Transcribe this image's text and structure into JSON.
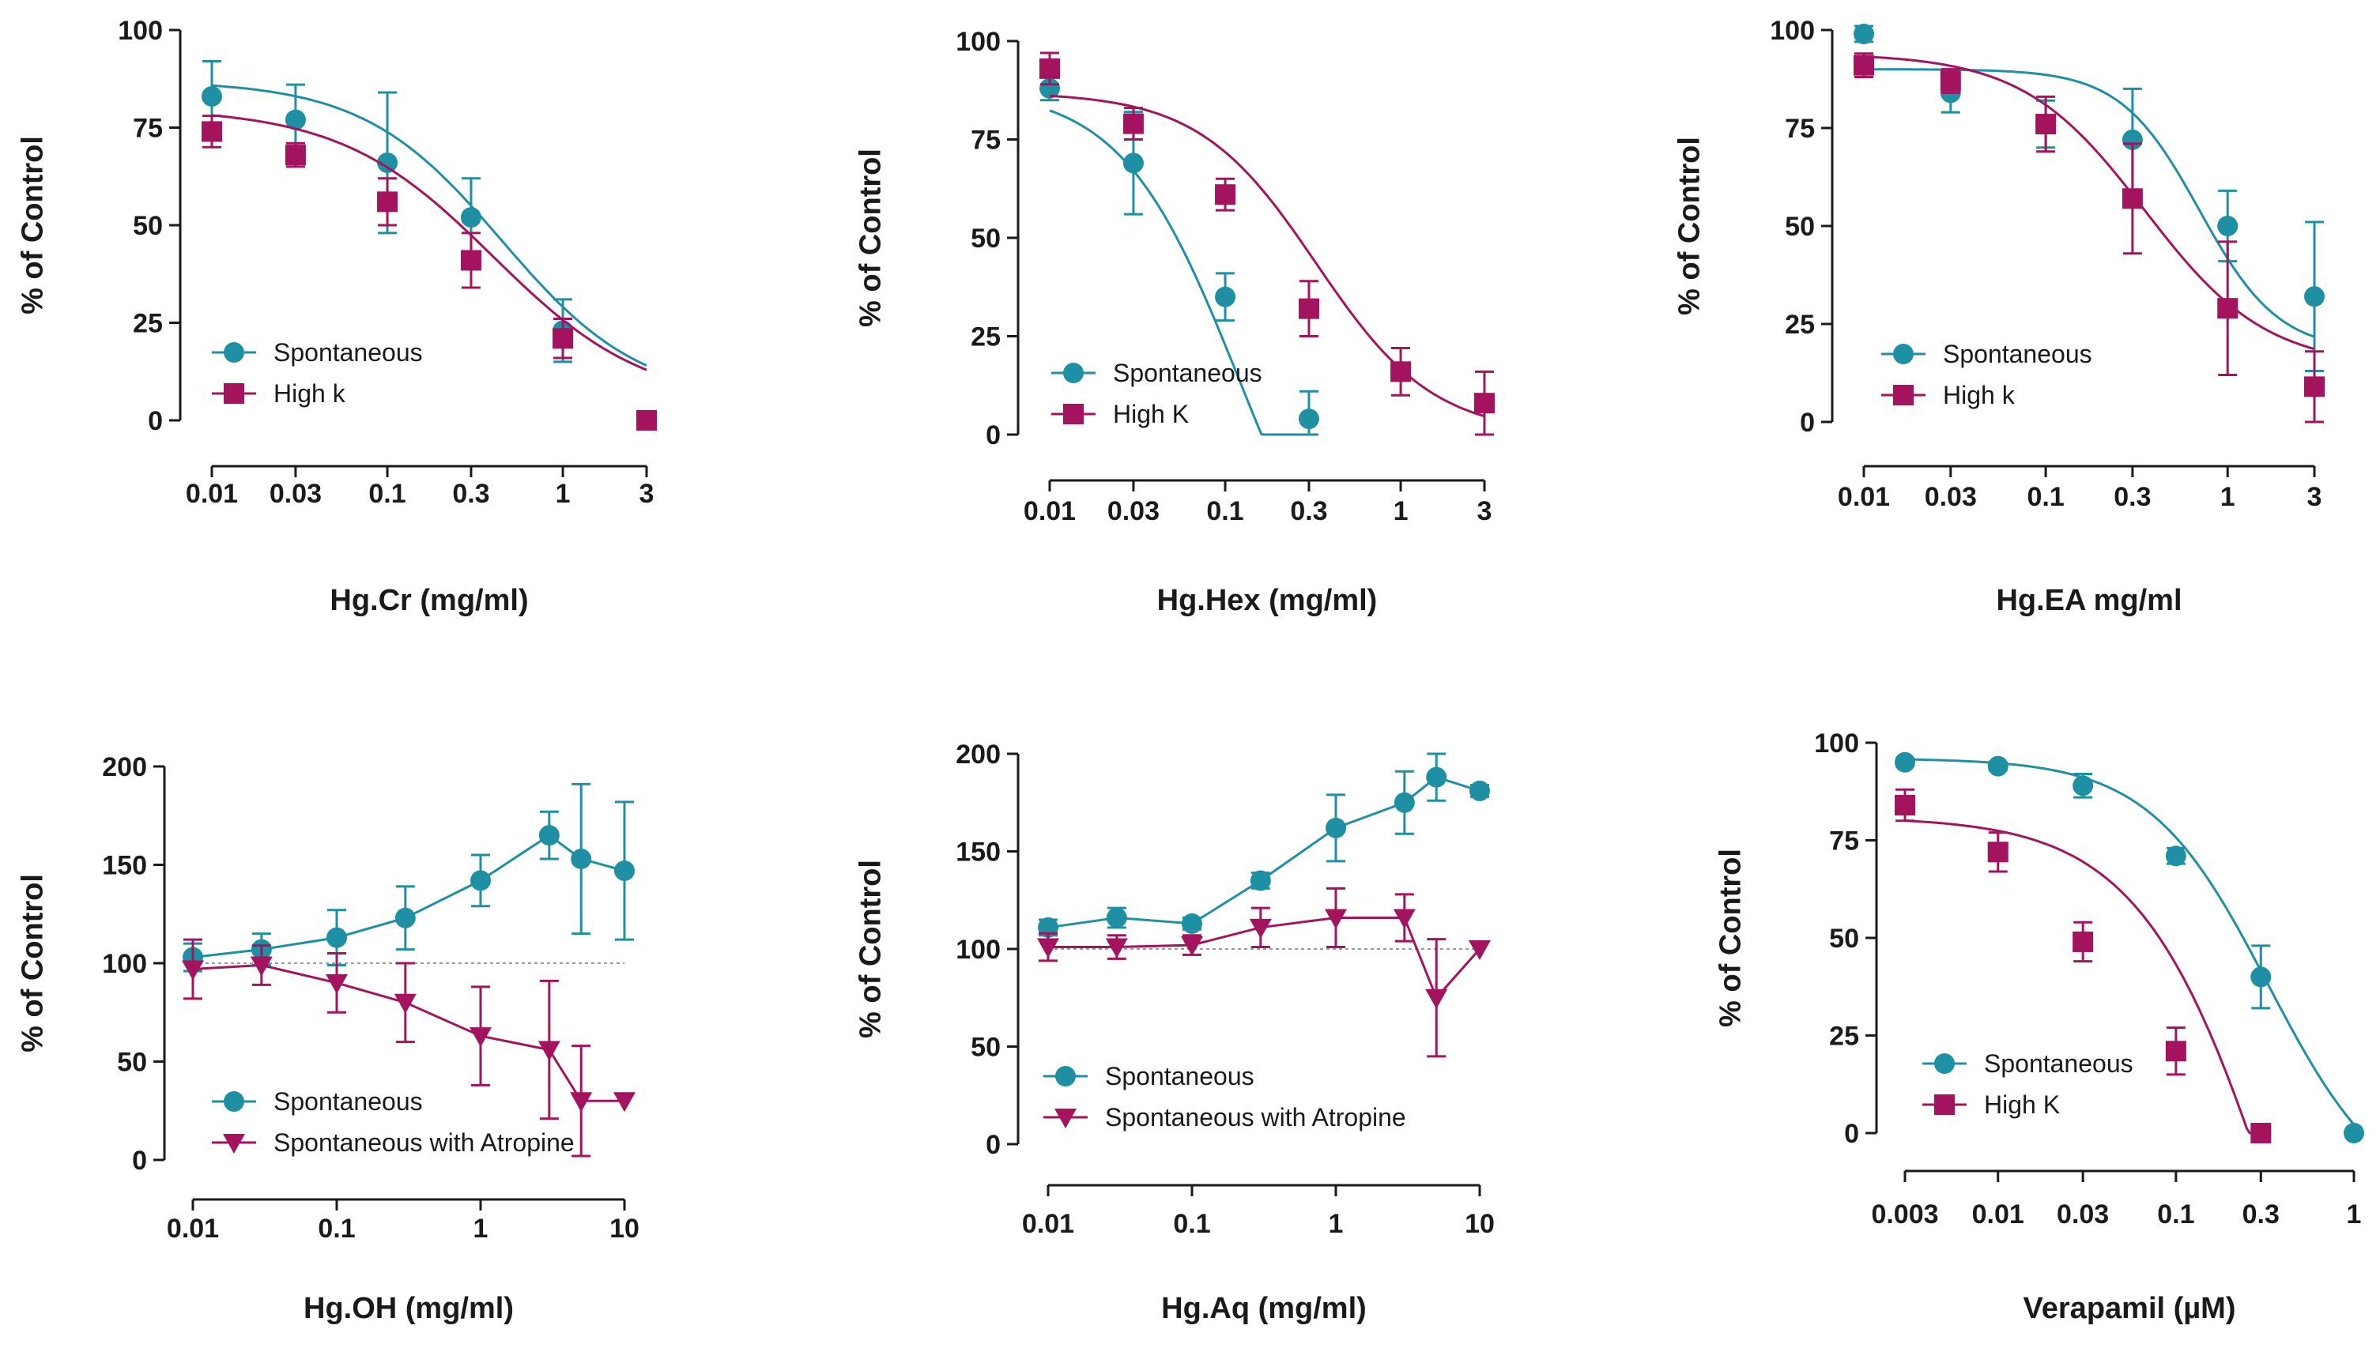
{
  "colors": {
    "teal": "#1F8FA3",
    "magenta": "#A3135E",
    "axis": "#1a1a1a",
    "ref": "#9a9a9a"
  },
  "chart_data": [
    {
      "type": "scatter",
      "title": "",
      "xlabel": "Hg.Cr (mg/ml)",
      "ylabel": "% of Control",
      "xscale": "log",
      "xlim": [
        0.01,
        3
      ],
      "ylim": [
        0,
        100
      ],
      "xticks": [
        0.01,
        0.03,
        0.1,
        0.3,
        1,
        3
      ],
      "xtick_labels": [
        "0.01",
        "0.03",
        "0.1",
        "0.3",
        "1",
        "3"
      ],
      "yticks": [
        0,
        25,
        50,
        75,
        100
      ],
      "ytick_labels": [
        "0",
        "25",
        "50",
        "75",
        "100"
      ],
      "legend": {
        "position": "bottom-left"
      },
      "series": [
        {
          "name": "Spontaneous",
          "color": "teal",
          "marker": "circle",
          "x": [
            0.01,
            0.03,
            0.1,
            0.3,
            1,
            3
          ],
          "y": [
            83,
            77,
            66,
            52,
            23,
            0
          ],
          "err": [
            9,
            9,
            18,
            10,
            8,
            0
          ],
          "fit": {
            "kind": "sigmoid",
            "top": 87,
            "bottom": 5,
            "ec50": 0.45,
            "hill": 1.1
          }
        },
        {
          "name": "High k",
          "color": "magenta",
          "marker": "square",
          "x": [
            0.01,
            0.03,
            0.1,
            0.3,
            1,
            3
          ],
          "y": [
            74,
            68,
            56,
            41,
            21,
            0
          ],
          "err": [
            4,
            3,
            6,
            7,
            5,
            0
          ],
          "fit": {
            "kind": "sigmoid",
            "top": 80,
            "bottom": 4,
            "ec50": 0.4,
            "hill": 1.0
          }
        }
      ]
    },
    {
      "type": "scatter",
      "title": "",
      "xlabel": "Hg.Hex (mg/ml)",
      "ylabel": "% of Control",
      "xscale": "log",
      "xlim": [
        0.01,
        3
      ],
      "ylim": [
        0,
        100
      ],
      "xticks": [
        0.01,
        0.03,
        0.1,
        0.3,
        1,
        3
      ],
      "xtick_labels": [
        "0.01",
        "0.03",
        "0.1",
        "0.3",
        "1",
        "3"
      ],
      "yticks": [
        0,
        25,
        50,
        75,
        100
      ],
      "ytick_labels": [
        "0",
        "25",
        "50",
        "75",
        "100"
      ],
      "legend": {
        "position": "bottom-left"
      },
      "series": [
        {
          "name": "Spontaneous",
          "color": "teal",
          "marker": "circle",
          "x": [
            0.01,
            0.03,
            0.1,
            0.3
          ],
          "y": [
            88,
            69,
            35,
            4
          ],
          "err": [
            3,
            13,
            6,
            7
          ],
          "fit": {
            "kind": "sigmoid",
            "top": 88,
            "bottom": -60,
            "ec50": 0.12,
            "hill": 1.3,
            "xmax": 0.28
          }
        },
        {
          "name": "High K",
          "color": "magenta",
          "marker": "square",
          "x": [
            0.01,
            0.03,
            0.1,
            0.3,
            1,
            3
          ],
          "y": [
            93,
            79,
            61,
            32,
            16,
            8
          ],
          "err": [
            4,
            4,
            4,
            7,
            6,
            8
          ],
          "fit": {
            "kind": "sigmoid",
            "top": 87,
            "bottom": 0,
            "ec50": 0.33,
            "hill": 1.3
          }
        }
      ]
    },
    {
      "type": "scatter",
      "title": "",
      "xlabel": "Hg.EA mg/ml",
      "ylabel": "% of Control",
      "xscale": "log",
      "xlim": [
        0.01,
        3
      ],
      "ylim": [
        0,
        100
      ],
      "xticks": [
        0.01,
        0.03,
        0.1,
        0.3,
        1,
        3
      ],
      "xtick_labels": [
        "0.01",
        "0.03",
        "0.1",
        "0.3",
        "1",
        "3"
      ],
      "yticks": [
        0,
        25,
        50,
        75,
        100
      ],
      "ytick_labels": [
        "0",
        "25",
        "50",
        "75",
        "100"
      ],
      "legend": {
        "position": "bottom-left"
      },
      "series": [
        {
          "name": "Spontaneous",
          "color": "teal",
          "marker": "circle",
          "x": [
            0.01,
            0.03,
            0.1,
            0.3,
            1,
            3
          ],
          "y": [
            99,
            84,
            76,
            72,
            50,
            32
          ],
          "err": [
            2,
            5,
            6,
            13,
            9,
            19
          ],
          "fit": {
            "kind": "sigmoid",
            "top": 90,
            "bottom": 18,
            "ec50": 0.7,
            "hill": 2.0
          }
        },
        {
          "name": "High k",
          "color": "magenta",
          "marker": "square",
          "x": [
            0.01,
            0.03,
            0.1,
            0.3,
            1,
            3
          ],
          "y": [
            91,
            87,
            76,
            57,
            29,
            9
          ],
          "err": [
            3,
            3,
            7,
            14,
            17,
            9
          ],
          "fit": {
            "kind": "sigmoid",
            "top": 94,
            "bottom": 14,
            "ec50": 0.35,
            "hill": 1.3
          }
        }
      ]
    },
    {
      "type": "line",
      "title": "",
      "xlabel": "Hg.OH (mg/ml)",
      "ylabel": "% of Control",
      "xscale": "log",
      "xlim": [
        0.01,
        10
      ],
      "ylim": [
        0,
        200
      ],
      "xticks": [
        0.01,
        0.1,
        1,
        10
      ],
      "xtick_labels": [
        "0.01",
        "0.1",
        "1",
        "10"
      ],
      "yticks": [
        0,
        50,
        100,
        150,
        200
      ],
      "ytick_labels": [
        "0",
        "50",
        "100",
        "150",
        "200"
      ],
      "reference_line": 100,
      "legend": {
        "position": "bottom-left"
      },
      "series": [
        {
          "name": "Spontaneous",
          "color": "teal",
          "marker": "circle",
          "x": [
            0.01,
            0.03,
            0.1,
            0.3,
            1,
            3,
            5,
            10
          ],
          "y": [
            103,
            107,
            113,
            123,
            142,
            165,
            153,
            147
          ],
          "err": [
            7,
            8,
            14,
            16,
            13,
            12,
            38,
            35
          ]
        },
        {
          "name": "Spontaneous with Atropine",
          "color": "magenta",
          "marker": "triangle-down",
          "x": [
            0.01,
            0.03,
            0.1,
            0.3,
            1,
            3,
            5,
            10
          ],
          "y": [
            97,
            99,
            90,
            80,
            63,
            56,
            30,
            30
          ],
          "err": [
            15,
            10,
            15,
            20,
            25,
            35,
            28,
            0
          ]
        }
      ]
    },
    {
      "type": "line",
      "title": "",
      "xlabel": "Hg.Aq (mg/ml)",
      "ylabel": "% of Control",
      "xscale": "log",
      "xlim": [
        0.01,
        10
      ],
      "ylim": [
        0,
        200
      ],
      "xticks": [
        0.01,
        0.1,
        1,
        10
      ],
      "xtick_labels": [
        "0.01",
        "0.1",
        "1",
        "10"
      ],
      "yticks": [
        0,
        50,
        100,
        150,
        200
      ],
      "ytick_labels": [
        "0",
        "50",
        "100",
        "150",
        "200"
      ],
      "reference_line": 100,
      "legend": {
        "position": "bottom-left"
      },
      "series": [
        {
          "name": "Spontaneous",
          "color": "teal",
          "marker": "circle",
          "x": [
            0.01,
            0.03,
            0.1,
            0.3,
            1,
            3,
            5,
            10
          ],
          "y": [
            111,
            116,
            113,
            135,
            162,
            175,
            188,
            181
          ],
          "err": [
            4,
            5,
            3,
            4,
            17,
            16,
            12,
            3
          ]
        },
        {
          "name": "Spontaneous with Atropine",
          "color": "magenta",
          "marker": "triangle-down",
          "x": [
            0.01,
            0.03,
            0.1,
            0.3,
            1,
            3,
            5,
            10
          ],
          "y": [
            101,
            101,
            102,
            111,
            116,
            116,
            75,
            100
          ],
          "err": [
            7,
            6,
            5,
            10,
            15,
            12,
            30,
            0
          ]
        }
      ]
    },
    {
      "type": "scatter",
      "title": "",
      "xlabel": "Verapamil (µM)",
      "ylabel": "% of Control",
      "xscale": "log",
      "xlim": [
        0.003,
        1
      ],
      "ylim": [
        0,
        100
      ],
      "xticks": [
        0.003,
        0.01,
        0.03,
        0.1,
        0.3,
        1
      ],
      "xtick_labels": [
        "0.003",
        "0.01",
        "0.03",
        "0.1",
        "0.3",
        "1"
      ],
      "yticks": [
        0,
        25,
        50,
        75,
        100
      ],
      "ytick_labels": [
        "0",
        "25",
        "50",
        "75",
        "100"
      ],
      "legend": {
        "position": "bottom-left"
      },
      "series": [
        {
          "name": "Spontaneous",
          "color": "teal",
          "marker": "circle",
          "x": [
            0.003,
            0.01,
            0.03,
            0.1,
            0.3,
            1
          ],
          "y": [
            95,
            94,
            89,
            71,
            40,
            0
          ],
          "err": [
            1,
            1,
            3,
            2,
            8,
            0
          ],
          "fit": {
            "kind": "sigmoid",
            "top": 96,
            "bottom": -20,
            "ec50": 0.33,
            "hill": 1.3
          }
        },
        {
          "name": "High K",
          "color": "magenta",
          "marker": "square",
          "x": [
            0.003,
            0.01,
            0.03,
            0.1,
            0.3
          ],
          "y": [
            84,
            72,
            49,
            21,
            0
          ],
          "err": [
            4,
            5,
            5,
            6,
            0
          ],
          "fit": {
            "kind": "sigmoid",
            "top": 81,
            "bottom": -140,
            "ec50": 0.42,
            "hill": 1.1,
            "xmax": 0.27
          }
        }
      ]
    }
  ]
}
